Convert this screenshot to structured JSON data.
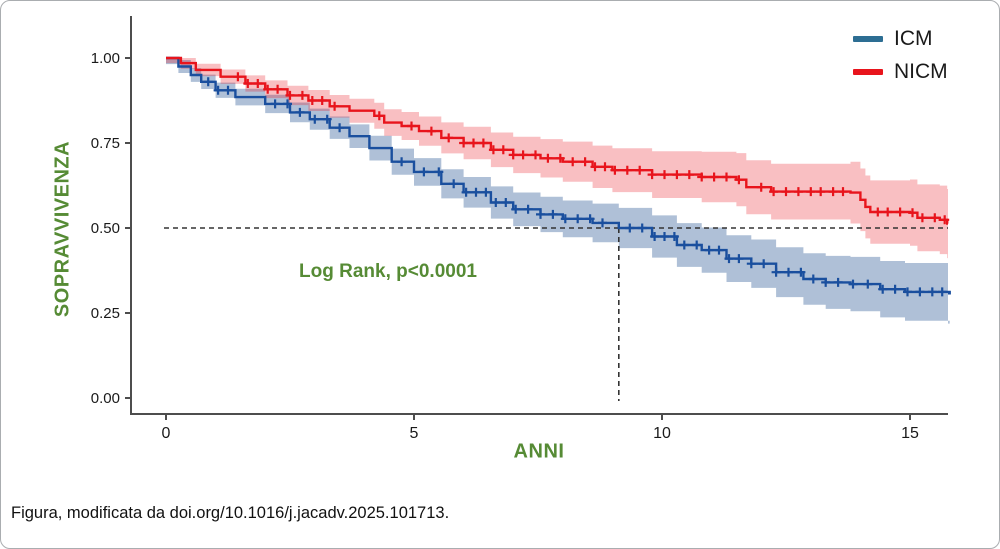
{
  "footer": {
    "caption": "Figura, modificata da doi.org/10.1016/j.jacadv.2025.101713."
  },
  "colors": {
    "accent_green": "#568b35",
    "axis_line": "#4d4d4d",
    "tick_text": "#1a1a1a",
    "guide_dash": "#333333",
    "icm_line": "#1a4f9e",
    "icm_legend_swatch": "#2d6e93",
    "icm_band": "rgba(45,90,150,0.38)",
    "nicm_line": "#e8141c",
    "nicm_legend_swatch": "#e8141c",
    "nicm_band": "rgba(232,20,28,0.27)"
  },
  "chart_data": {
    "type": "line",
    "subtype": "kaplan-meier-step",
    "title": "",
    "xlabel": "ANNI",
    "ylabel": "SOPRAVVIVENZA",
    "annotation": "Log Rank, p<0.0001",
    "legend_position": "top-right",
    "grid": false,
    "xlim": [
      0,
      15.8
    ],
    "ylim": [
      0.0,
      1.0
    ],
    "x_ticks": {
      "values": [
        0,
        5,
        10,
        15
      ],
      "labels": [
        "0",
        "5",
        "10",
        "15"
      ]
    },
    "y_ticks": {
      "values": [
        1.0,
        0.75,
        0.5,
        0.25,
        0.0
      ],
      "labels": [
        "1.00",
        "0.75",
        "0.50",
        "0.25",
        "0.00"
      ]
    },
    "guides": {
      "median_survival_level": 0.5,
      "icm_median_time_years": 9.13
    },
    "legend": [
      {
        "name": "ICM"
      },
      {
        "name": "NICM"
      }
    ],
    "series": [
      {
        "name": "ICM",
        "ci_halfwidth": {
          "a": 0.018,
          "b": 0.0045
        },
        "points": [
          [
            0,
            1.0
          ],
          [
            0.25,
            0.975
          ],
          [
            0.5,
            0.95
          ],
          [
            0.71,
            0.93
          ],
          [
            1.0,
            0.905
          ],
          [
            1.4,
            0.885
          ],
          [
            2.0,
            0.865
          ],
          [
            2.5,
            0.84
          ],
          [
            2.9,
            0.82
          ],
          [
            3.3,
            0.795
          ],
          [
            3.7,
            0.77
          ],
          [
            4.1,
            0.735
          ],
          [
            4.55,
            0.695
          ],
          [
            5.0,
            0.665
          ],
          [
            5.55,
            0.63
          ],
          [
            6.0,
            0.605
          ],
          [
            6.55,
            0.575
          ],
          [
            7.0,
            0.555
          ],
          [
            7.55,
            0.54
          ],
          [
            8.0,
            0.527
          ],
          [
            8.6,
            0.515
          ],
          [
            9.13,
            0.5
          ],
          [
            9.8,
            0.475
          ],
          [
            10.3,
            0.45
          ],
          [
            10.8,
            0.435
          ],
          [
            11.3,
            0.41
          ],
          [
            11.8,
            0.395
          ],
          [
            12.3,
            0.37
          ],
          [
            12.85,
            0.35
          ],
          [
            13.3,
            0.34
          ],
          [
            13.8,
            0.335
          ],
          [
            14.4,
            0.32
          ],
          [
            14.9,
            0.312
          ],
          [
            15.8,
            0.308
          ]
        ],
        "censor_times": [
          0.85,
          1.05,
          1.25,
          2.2,
          2.45,
          2.7,
          3.0,
          3.25,
          3.5,
          4.75,
          5.2,
          5.5,
          5.8,
          6.05,
          6.25,
          6.45,
          6.65,
          6.85,
          7.05,
          7.3,
          7.55,
          7.8,
          8.05,
          8.3,
          8.55,
          8.8,
          9.35,
          9.6,
          9.85,
          10.05,
          10.25,
          10.45,
          10.7,
          10.95,
          11.15,
          11.35,
          11.55,
          11.8,
          12.05,
          12.3,
          12.55,
          12.8,
          13.05,
          13.3,
          13.55,
          13.85,
          14.15,
          14.45,
          14.7,
          14.95,
          15.2,
          15.45,
          15.65
        ]
      },
      {
        "name": "NICM",
        "ci_halfwidth": {
          "a": 0.015,
          "b": 0.0055
        },
        "points": [
          [
            0,
            1.0
          ],
          [
            0.3,
            0.985
          ],
          [
            0.6,
            0.965
          ],
          [
            1.1,
            0.945
          ],
          [
            1.6,
            0.925
          ],
          [
            2.0,
            0.908
          ],
          [
            2.45,
            0.89
          ],
          [
            2.87,
            0.875
          ],
          [
            3.3,
            0.858
          ],
          [
            3.7,
            0.845
          ],
          [
            4.2,
            0.83
          ],
          [
            4.4,
            0.81
          ],
          [
            4.75,
            0.8
          ],
          [
            5.1,
            0.785
          ],
          [
            5.55,
            0.765
          ],
          [
            6.0,
            0.75
          ],
          [
            6.55,
            0.73
          ],
          [
            7.0,
            0.715
          ],
          [
            7.55,
            0.705
          ],
          [
            8.0,
            0.695
          ],
          [
            8.6,
            0.68
          ],
          [
            9.0,
            0.67
          ],
          [
            9.8,
            0.657
          ],
          [
            10.8,
            0.65
          ],
          [
            11.5,
            0.642
          ],
          [
            11.7,
            0.62
          ],
          [
            12.2,
            0.607
          ],
          [
            13.8,
            0.604
          ],
          [
            14.0,
            0.583
          ],
          [
            14.1,
            0.562
          ],
          [
            14.2,
            0.547
          ],
          [
            15.0,
            0.545
          ],
          [
            15.15,
            0.53
          ],
          [
            15.6,
            0.524
          ],
          [
            15.75,
            0.513
          ]
        ],
        "censor_times": [
          1.45,
          1.65,
          1.85,
          2.05,
          2.25,
          2.5,
          2.75,
          2.95,
          3.15,
          3.4,
          4.3,
          4.95,
          5.35,
          5.7,
          6.0,
          6.2,
          6.4,
          6.6,
          6.8,
          7.0,
          7.2,
          7.45,
          7.7,
          7.95,
          8.2,
          8.45,
          8.65,
          8.85,
          9.05,
          9.3,
          9.55,
          9.8,
          10.05,
          10.3,
          10.55,
          10.8,
          11.05,
          11.3,
          11.55,
          12.0,
          12.25,
          12.5,
          12.75,
          13.0,
          13.2,
          13.45,
          13.65,
          14.35,
          14.55,
          14.8,
          15.05,
          15.25,
          15.5,
          15.7
        ]
      }
    ]
  }
}
